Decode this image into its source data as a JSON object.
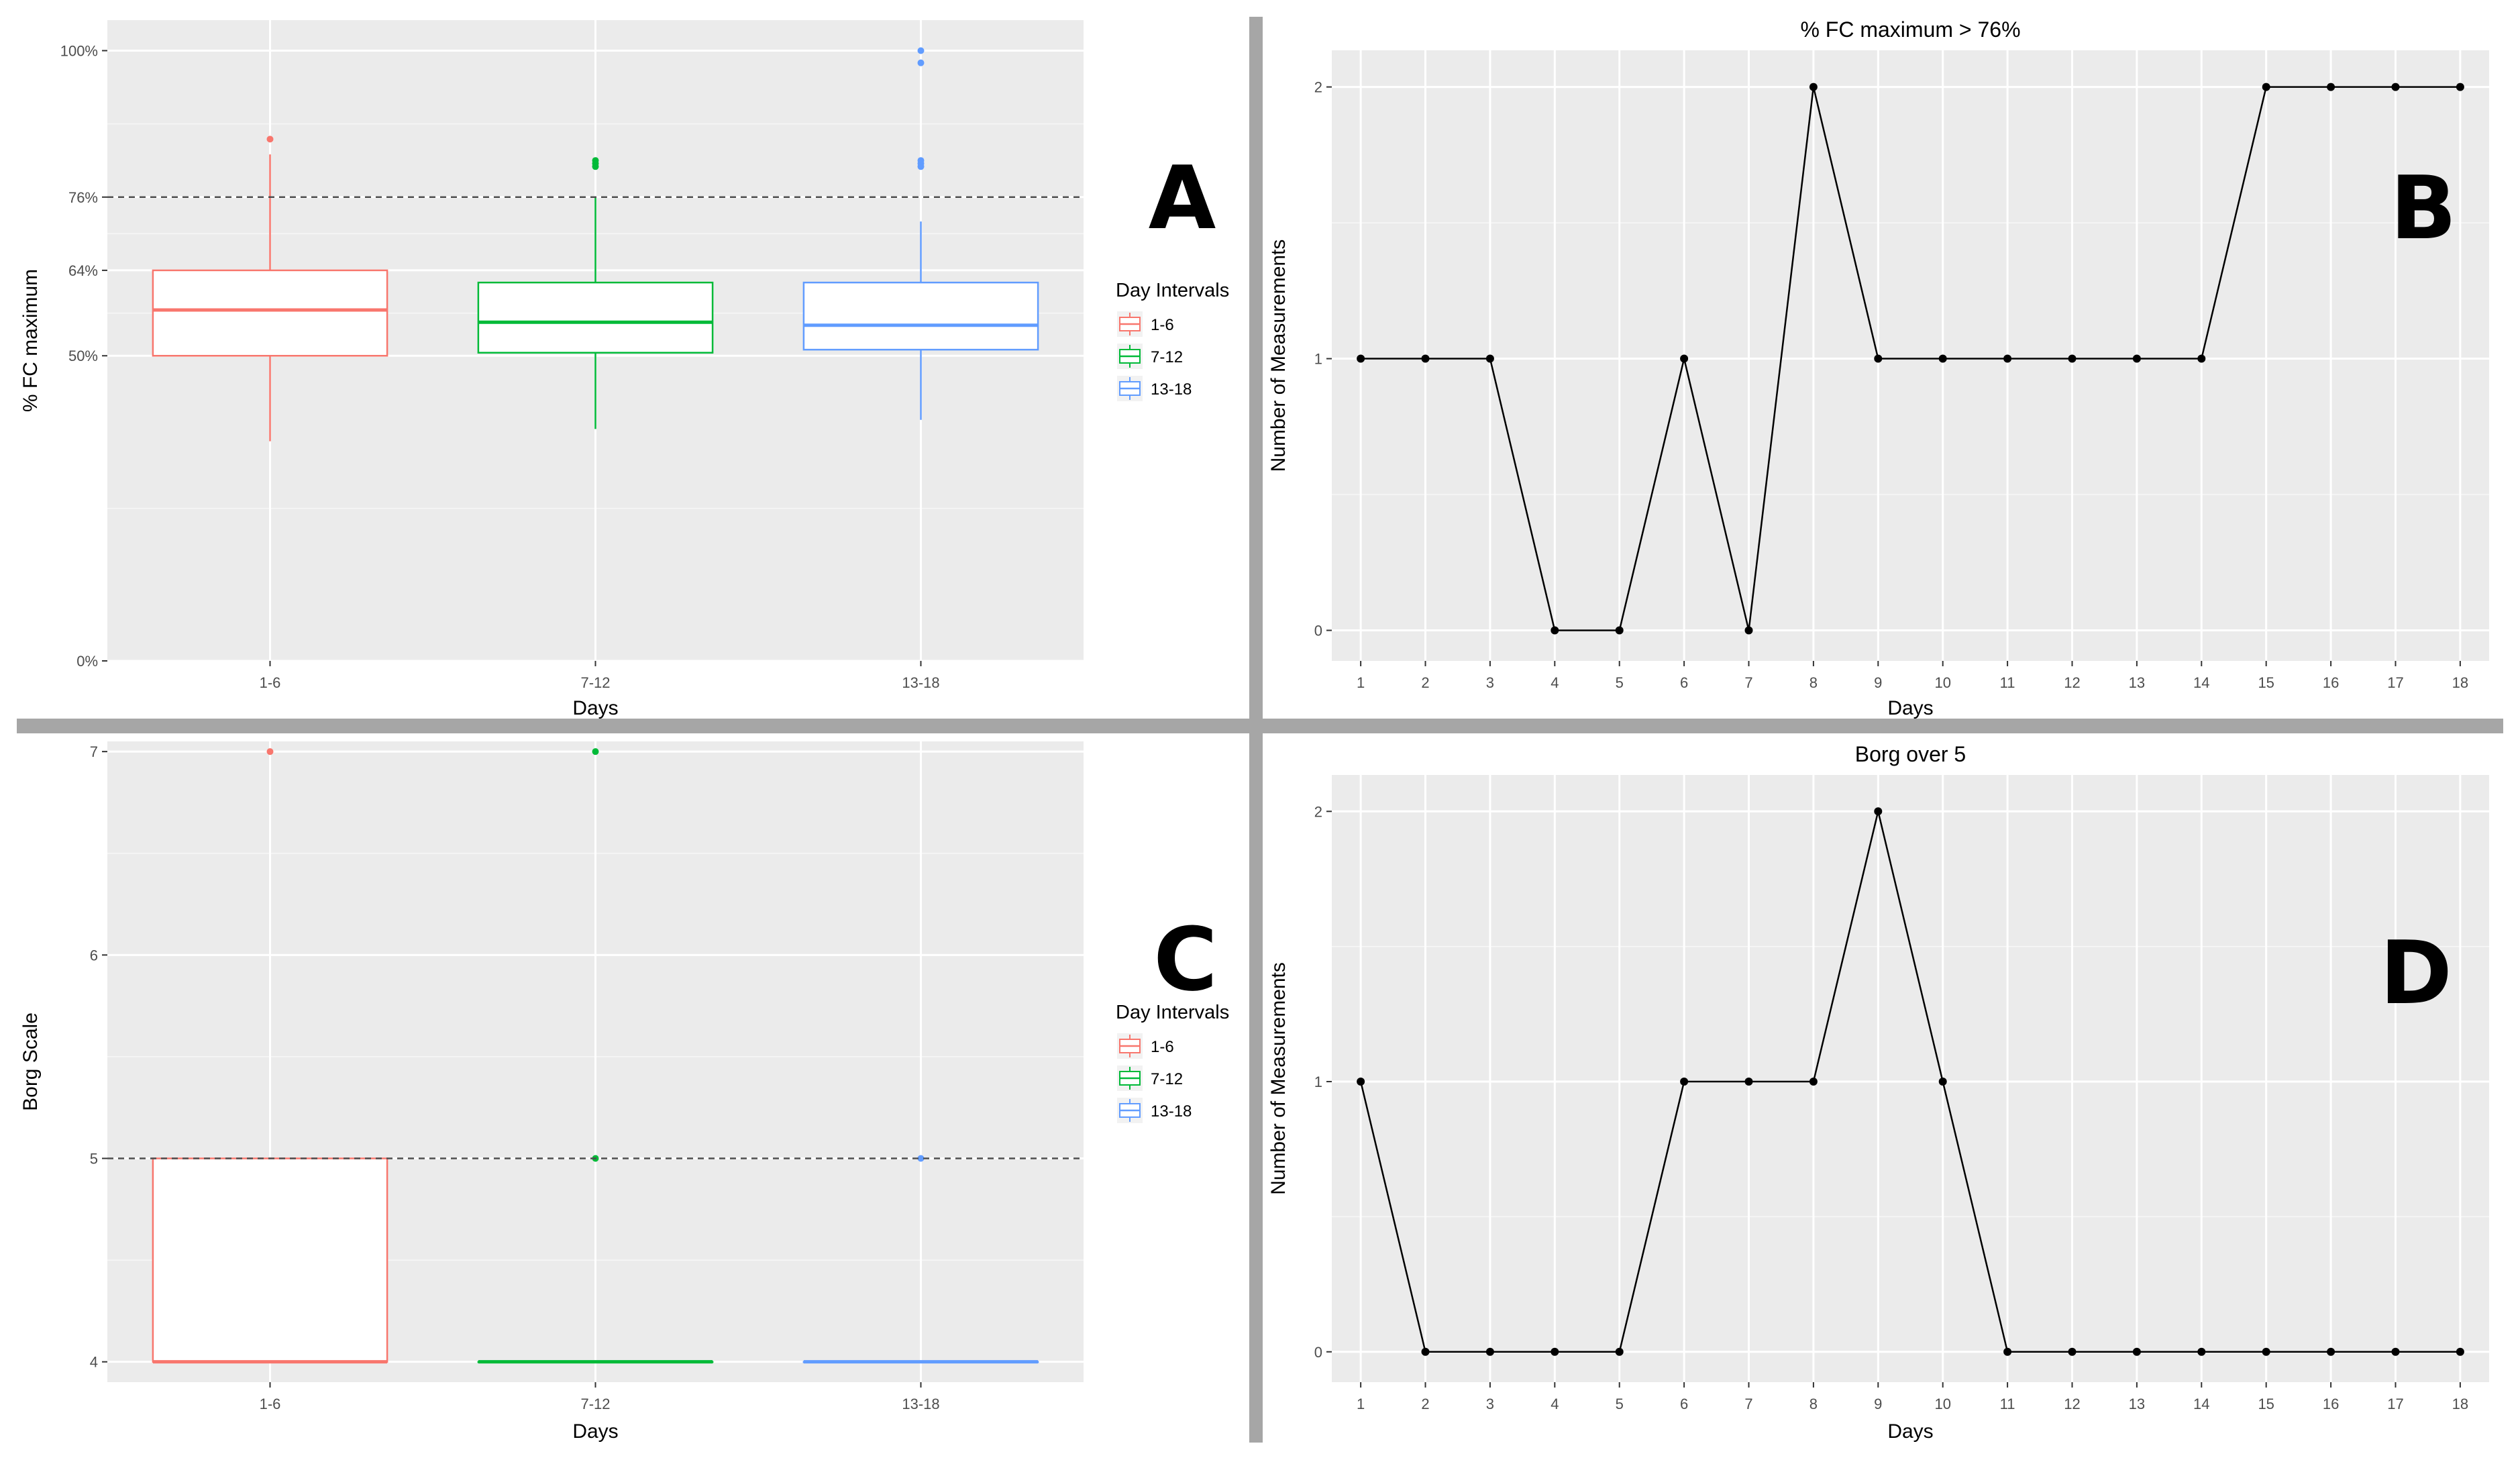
{
  "colors": {
    "panel_bg": "#ebebeb",
    "grid": "#ffffff",
    "divider": "#a6a6a6",
    "group_1": "#f8766d",
    "group_2": "#00ba38",
    "group_3": "#619cff",
    "line": "#000000",
    "ref_line": "#4d4d4d"
  },
  "legend": {
    "title": "Day Intervals",
    "items": [
      "1-6",
      "7-12",
      "13-18"
    ]
  },
  "panels": {
    "A": "A",
    "B": "B",
    "C": "C",
    "D": "D"
  },
  "chart_data": [
    {
      "id": "A",
      "type": "boxplot",
      "title": "",
      "xlabel": "Days",
      "ylabel": "% FC maximum",
      "ylim": [
        0,
        105
      ],
      "y_ticks": [
        0,
        50,
        64,
        76,
        100
      ],
      "y_tick_labels": [
        "0%",
        "50%",
        "64%",
        "76%",
        "100%"
      ],
      "reference_line": 76,
      "categories": [
        "1-6",
        "7-12",
        "13-18"
      ],
      "boxes": [
        {
          "name": "1-6",
          "whisker_low": 36,
          "q1": 50,
          "median": 57.5,
          "q3": 64,
          "whisker_high": 83,
          "outliers": [
            85.5
          ]
        },
        {
          "name": "7-12",
          "whisker_low": 38,
          "q1": 50.5,
          "median": 55.5,
          "q3": 62,
          "whisker_high": 76,
          "outliers": [
            81,
            81.5,
            82
          ]
        },
        {
          "name": "13-18",
          "whisker_low": 39.5,
          "q1": 51,
          "median": 55,
          "q3": 62,
          "whisker_high": 72,
          "outliers": [
            81,
            81.5,
            82,
            98,
            100
          ]
        }
      ]
    },
    {
      "id": "B",
      "type": "line",
      "title": "% FC maximum > 76%",
      "xlabel": "Days",
      "ylabel": "Number of Measurements",
      "ylim": [
        0,
        2
      ],
      "y_ticks": [
        0,
        1,
        2
      ],
      "x": [
        1,
        2,
        3,
        4,
        5,
        6,
        7,
        8,
        9,
        10,
        11,
        12,
        13,
        14,
        15,
        16,
        17,
        18
      ],
      "x_tick_labels": [
        "1",
        "2",
        "3",
        "4",
        "5",
        "6",
        "7",
        "8",
        "9",
        "10",
        "11",
        "12",
        "13",
        "14",
        "15",
        "16",
        "17",
        "18"
      ],
      "y": [
        1,
        1,
        1,
        0,
        0,
        1,
        0,
        2,
        1,
        1,
        1,
        1,
        1,
        1,
        2,
        2,
        2,
        2
      ]
    },
    {
      "id": "C",
      "type": "boxplot",
      "title": "",
      "xlabel": "Days",
      "ylabel": "Borg Scale",
      "ylim": [
        3.9,
        7.05
      ],
      "y_ticks": [
        4,
        5,
        6,
        7
      ],
      "y_tick_labels": [
        "4",
        "5",
        "6",
        "7"
      ],
      "reference_line": 5,
      "categories": [
        "1-6",
        "7-12",
        "13-18"
      ],
      "boxes": [
        {
          "name": "1-6",
          "whisker_low": 4,
          "q1": 4,
          "median": 4,
          "q3": 5,
          "whisker_high": 5,
          "outliers": [
            7
          ]
        },
        {
          "name": "7-12",
          "whisker_low": 4,
          "q1": 4,
          "median": 4,
          "q3": 4,
          "whisker_high": 4,
          "outliers": [
            5,
            7
          ]
        },
        {
          "name": "13-18",
          "whisker_low": 4,
          "q1": 4,
          "median": 4,
          "q3": 4,
          "whisker_high": 4,
          "outliers": [
            5
          ]
        }
      ]
    },
    {
      "id": "D",
      "type": "line",
      "title": "Borg over 5",
      "xlabel": "Days",
      "ylabel": "Number of Measurements",
      "ylim": [
        0,
        2
      ],
      "y_ticks": [
        0,
        1,
        2
      ],
      "x": [
        1,
        2,
        3,
        4,
        5,
        6,
        7,
        8,
        9,
        10,
        11,
        12,
        13,
        14,
        15,
        16,
        17,
        18
      ],
      "x_tick_labels": [
        "1",
        "2",
        "3",
        "4",
        "5",
        "6",
        "7",
        "8",
        "9",
        "10",
        "11",
        "12",
        "13",
        "14",
        "15",
        "16",
        "17",
        "18"
      ],
      "y": [
        1,
        0,
        0,
        0,
        0,
        1,
        1,
        1,
        2,
        1,
        0,
        0,
        0,
        0,
        0,
        0,
        0,
        0
      ]
    }
  ]
}
